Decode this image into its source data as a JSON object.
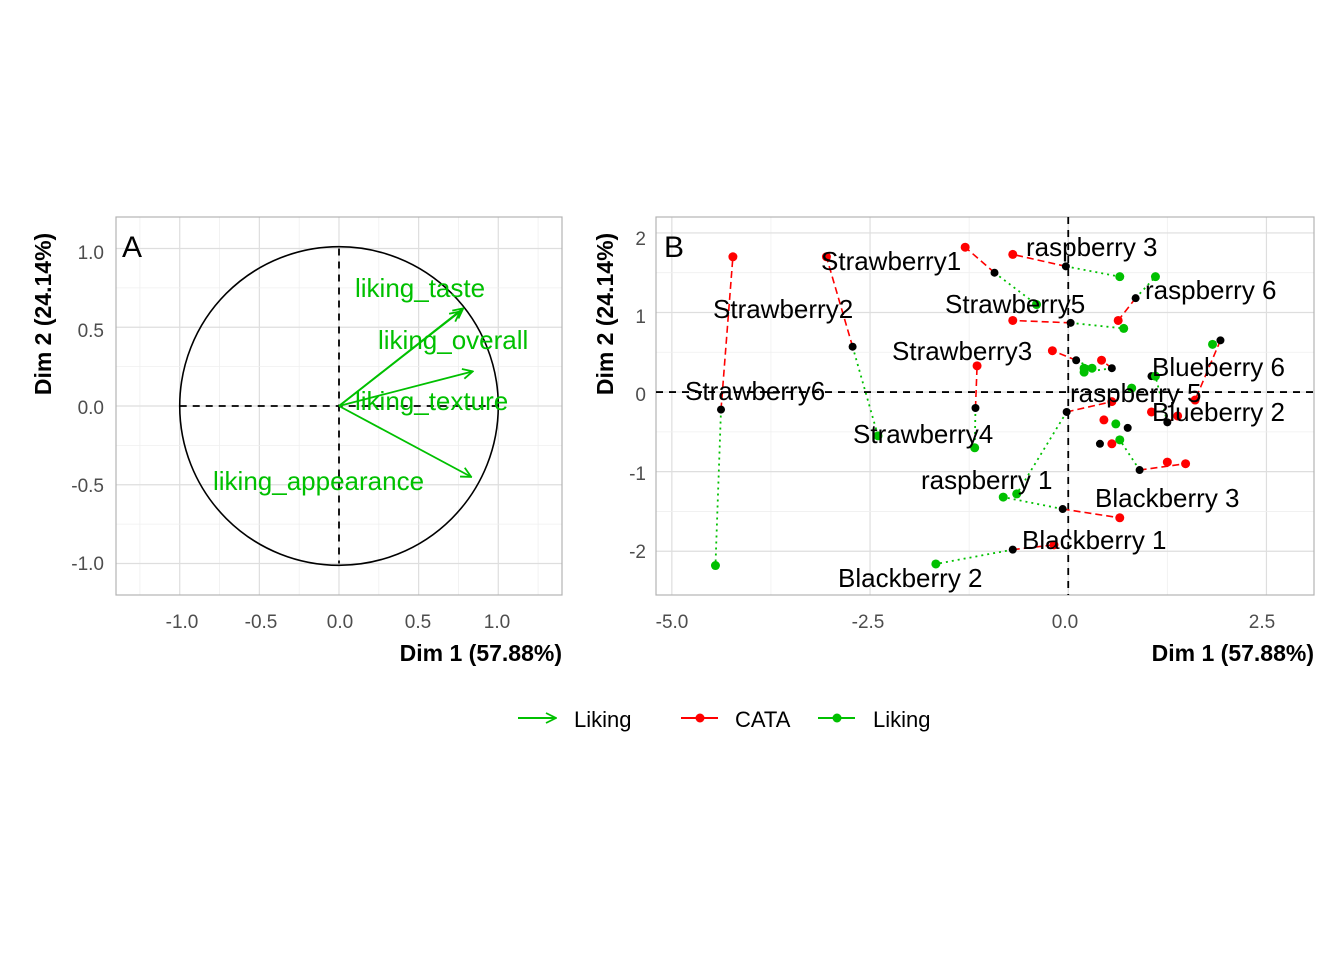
{
  "chart_data": [
    {
      "type": "scatter",
      "panel": "A",
      "xlabel": "Dim 1 (57.88%)",
      "ylabel": "Dim 2 (24.14%)",
      "xlim": [
        -1.4,
        1.4
      ],
      "ylim": [
        -1.2,
        1.2
      ],
      "xticks": [
        "-1.0",
        "-0.5",
        "0.0",
        "0.5",
        "1.0"
      ],
      "yticks": [
        "1.0",
        "0.5",
        "0.0",
        "-0.5",
        "-1.0"
      ],
      "grid": true,
      "unit_circle": true,
      "vectors": [
        {
          "name": "liking_taste",
          "x": 0.78,
          "y": 0.62
        },
        {
          "name": "liking_overall",
          "x": 0.76,
          "y": 0.6
        },
        {
          "name": "liking_texture",
          "x": 0.84,
          "y": 0.22
        },
        {
          "name": "liking_appearance",
          "x": 0.83,
          "y": -0.45
        }
      ],
      "vector_color": "#00c000"
    },
    {
      "type": "scatter",
      "panel": "B",
      "xlabel": "Dim 1 (57.88%)",
      "ylabel": "Dim 2 (24.14%)",
      "xlim": [
        -5.2,
        3.1
      ],
      "ylim": [
        -2.55,
        2.2
      ],
      "xticks": [
        "-5.0",
        "-2.5",
        "0.0",
        "2.5"
      ],
      "yticks": [
        "2",
        "1",
        "0",
        "-1",
        "-2"
      ],
      "grid": true,
      "colors": {
        "mean": "#000000",
        "CATA": "#ff0000",
        "Liking": "#00c000"
      },
      "products": [
        {
          "label": "Strawberry1",
          "x": -0.93,
          "y": 1.5,
          "cata": [
            -1.3,
            1.82
          ],
          "liking": [
            -0.4,
            1.1
          ]
        },
        {
          "label": "raspberry 3",
          "x": -0.03,
          "y": 1.58,
          "cata": [
            -0.7,
            1.73
          ],
          "liking": [
            0.65,
            1.45
          ]
        },
        {
          "label": "raspberry 6",
          "x": 0.85,
          "y": 1.18,
          "cata": [
            0.63,
            0.9
          ],
          "liking": [
            1.1,
            1.45
          ]
        },
        {
          "label": "Strawberry2",
          "x": -2.72,
          "y": 0.57,
          "cata": [
            -3.05,
            1.7
          ],
          "liking": [
            -2.4,
            -0.55
          ]
        },
        {
          "label": "Strawberry5",
          "x": 0.03,
          "y": 0.87,
          "cata": [
            -0.7,
            0.9
          ],
          "liking": [
            0.7,
            0.8
          ]
        },
        {
          "label": "Strawberry3",
          "x": 0.1,
          "y": 0.4,
          "cata": [
            -0.2,
            0.52
          ],
          "liking": [
            0.3,
            0.3
          ]
        },
        {
          "label": "Blueberry 6",
          "x": 1.92,
          "y": 0.65,
          "cata": [
            1.6,
            -0.1
          ],
          "liking": [
            1.82,
            0.6
          ]
        },
        {
          "label": "raspberry 5",
          "x": 0.55,
          "y": 0.3,
          "cata": [
            0.42,
            0.4
          ],
          "liking": [
            0.2,
            0.25
          ]
        },
        {
          "label": "Strawberry6",
          "x": -4.38,
          "y": -0.22,
          "cata": [
            -4.23,
            1.7
          ],
          "liking": [
            -4.45,
            -2.18
          ]
        },
        {
          "label": "Blueberry 2",
          "x": 1.25,
          "y": -0.38,
          "cata": [
            1.38,
            -0.3
          ],
          "liking": [
            1.1,
            0.2
          ]
        },
        {
          "label": "Strawberry4",
          "x": -1.17,
          "y": -0.2,
          "cata": [
            -1.15,
            0.33
          ],
          "liking": [
            -1.18,
            -0.7
          ]
        },
        {
          "label": "raspberry 1",
          "x": -0.02,
          "y": -0.25,
          "cata": [
            0.55,
            -0.12
          ],
          "liking": [
            -0.65,
            -1.28
          ]
        },
        {
          "label": "Blackberry 3",
          "x": 0.9,
          "y": -0.98,
          "cata": [
            1.48,
            -0.9
          ],
          "liking": [
            0.65,
            -0.6
          ]
        },
        {
          "label": "Blackberry 1",
          "x": -0.07,
          "y": -1.47,
          "cata": [
            0.65,
            -1.58
          ],
          "liking": [
            -0.82,
            -1.32
          ]
        },
        {
          "label": "Blackberry 2",
          "x": -0.7,
          "y": -1.98,
          "cata": [
            -0.18,
            -1.92
          ],
          "liking": [
            -1.67,
            -2.16
          ]
        }
      ],
      "extra_points": {
        "mean": [
          [
            1.05,
            0.2
          ],
          [
            0.4,
            -0.65
          ],
          [
            0.75,
            -0.45
          ]
        ],
        "CATA": [
          [
            0.55,
            -0.65
          ],
          [
            1.25,
            -0.88
          ],
          [
            1.05,
            -0.25
          ],
          [
            0.45,
            -0.35
          ]
        ],
        "Liking": [
          [
            0.8,
            0.05
          ],
          [
            0.6,
            -0.4
          ],
          [
            0.2,
            0.3
          ]
        ]
      }
    }
  ],
  "panels": {
    "a_tag": "A",
    "b_tag": "B"
  },
  "legend": {
    "arrow_label": "Liking",
    "cata_label": "CATA",
    "liking_label": "Liking"
  }
}
